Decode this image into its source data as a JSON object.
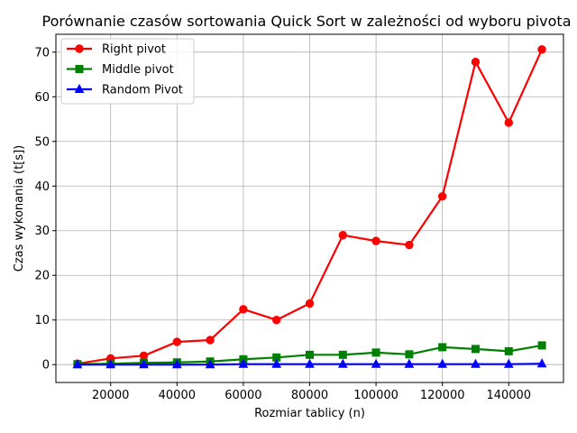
{
  "chart_data": {
    "type": "line",
    "title": "Porównanie czasów sortowania Quick Sort w zależności od wyboru pivota",
    "xlabel": "Rozmiar tablicy (n)",
    "ylabel": "Czas wykonania (t[s])",
    "xlim": [
      3500,
      156500
    ],
    "ylim": [
      -4,
      74
    ],
    "x_ticks": [
      20000,
      40000,
      60000,
      80000,
      100000,
      120000,
      140000
    ],
    "y_ticks": [
      0,
      10,
      20,
      30,
      40,
      50,
      60,
      70
    ],
    "grid": true,
    "legend_position": "top-left",
    "x": [
      10000,
      20000,
      30000,
      40000,
      50000,
      60000,
      70000,
      80000,
      90000,
      100000,
      110000,
      120000,
      130000,
      140000,
      150000
    ],
    "series": [
      {
        "name": "Right pivot",
        "color": "#ff0000",
        "marker": "circle",
        "values": [
          0.2,
          1.4,
          2.0,
          5.1,
          5.5,
          12.4,
          10.0,
          13.7,
          29.0,
          27.7,
          26.8,
          37.7,
          67.8,
          54.2,
          70.6
        ]
      },
      {
        "name": "Middle pivot",
        "color": "#008000",
        "marker": "square",
        "values": [
          0.1,
          0.2,
          0.4,
          0.5,
          0.7,
          1.2,
          1.6,
          2.2,
          2.2,
          2.7,
          2.3,
          3.9,
          3.5,
          3.0,
          4.3
        ]
      },
      {
        "name": "Random Pivot",
        "color": "#0000ff",
        "marker": "triangle",
        "values": [
          0.0,
          0.0,
          0.0,
          0.0,
          0.0,
          0.1,
          0.1,
          0.1,
          0.1,
          0.1,
          0.1,
          0.1,
          0.1,
          0.1,
          0.2
        ]
      }
    ]
  }
}
